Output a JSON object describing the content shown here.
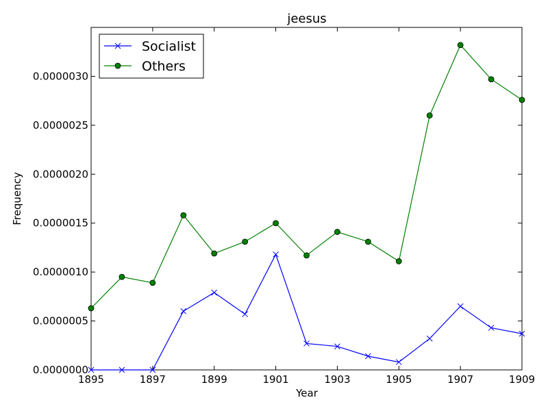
{
  "chart_data": {
    "type": "line",
    "title": "jeesus",
    "xlabel": "Year",
    "ylabel": "Frequency",
    "x": [
      1895,
      1896,
      1897,
      1898,
      1899,
      1900,
      1901,
      1902,
      1903,
      1904,
      1905,
      1906,
      1907,
      1908,
      1909
    ],
    "xlim": [
      1895,
      1909
    ],
    "ylim": [
      0,
      3.5e-06
    ],
    "x_ticks": [
      "1895",
      "1897",
      "1899",
      "1901",
      "1903",
      "1905",
      "1907",
      "1909"
    ],
    "y_ticks": [
      "0.0000000",
      "0.0000005",
      "0.0000010",
      "0.0000015",
      "0.0000020",
      "0.0000025",
      "0.0000030"
    ],
    "legend_position": "top-left",
    "grid": false,
    "series": [
      {
        "name": "Socialist",
        "color": "#0000ff",
        "marker": "x",
        "values": [
          0,
          0,
          0,
          6e-07,
          7.9e-07,
          5.7e-07,
          1.18e-06,
          2.7e-07,
          2.4e-07,
          1.4e-07,
          8e-08,
          3.2e-07,
          6.5e-07,
          4.3e-07,
          3.7e-07
        ]
      },
      {
        "name": "Others",
        "color": "#008000",
        "marker": "o",
        "values": [
          6.3e-07,
          9.5e-07,
          8.9e-07,
          1.58e-06,
          1.19e-06,
          1.31e-06,
          1.5e-06,
          1.17e-06,
          1.41e-06,
          1.31e-06,
          1.11e-06,
          2.6e-06,
          3.32e-06,
          2.97e-06,
          2.76e-06
        ]
      }
    ]
  }
}
